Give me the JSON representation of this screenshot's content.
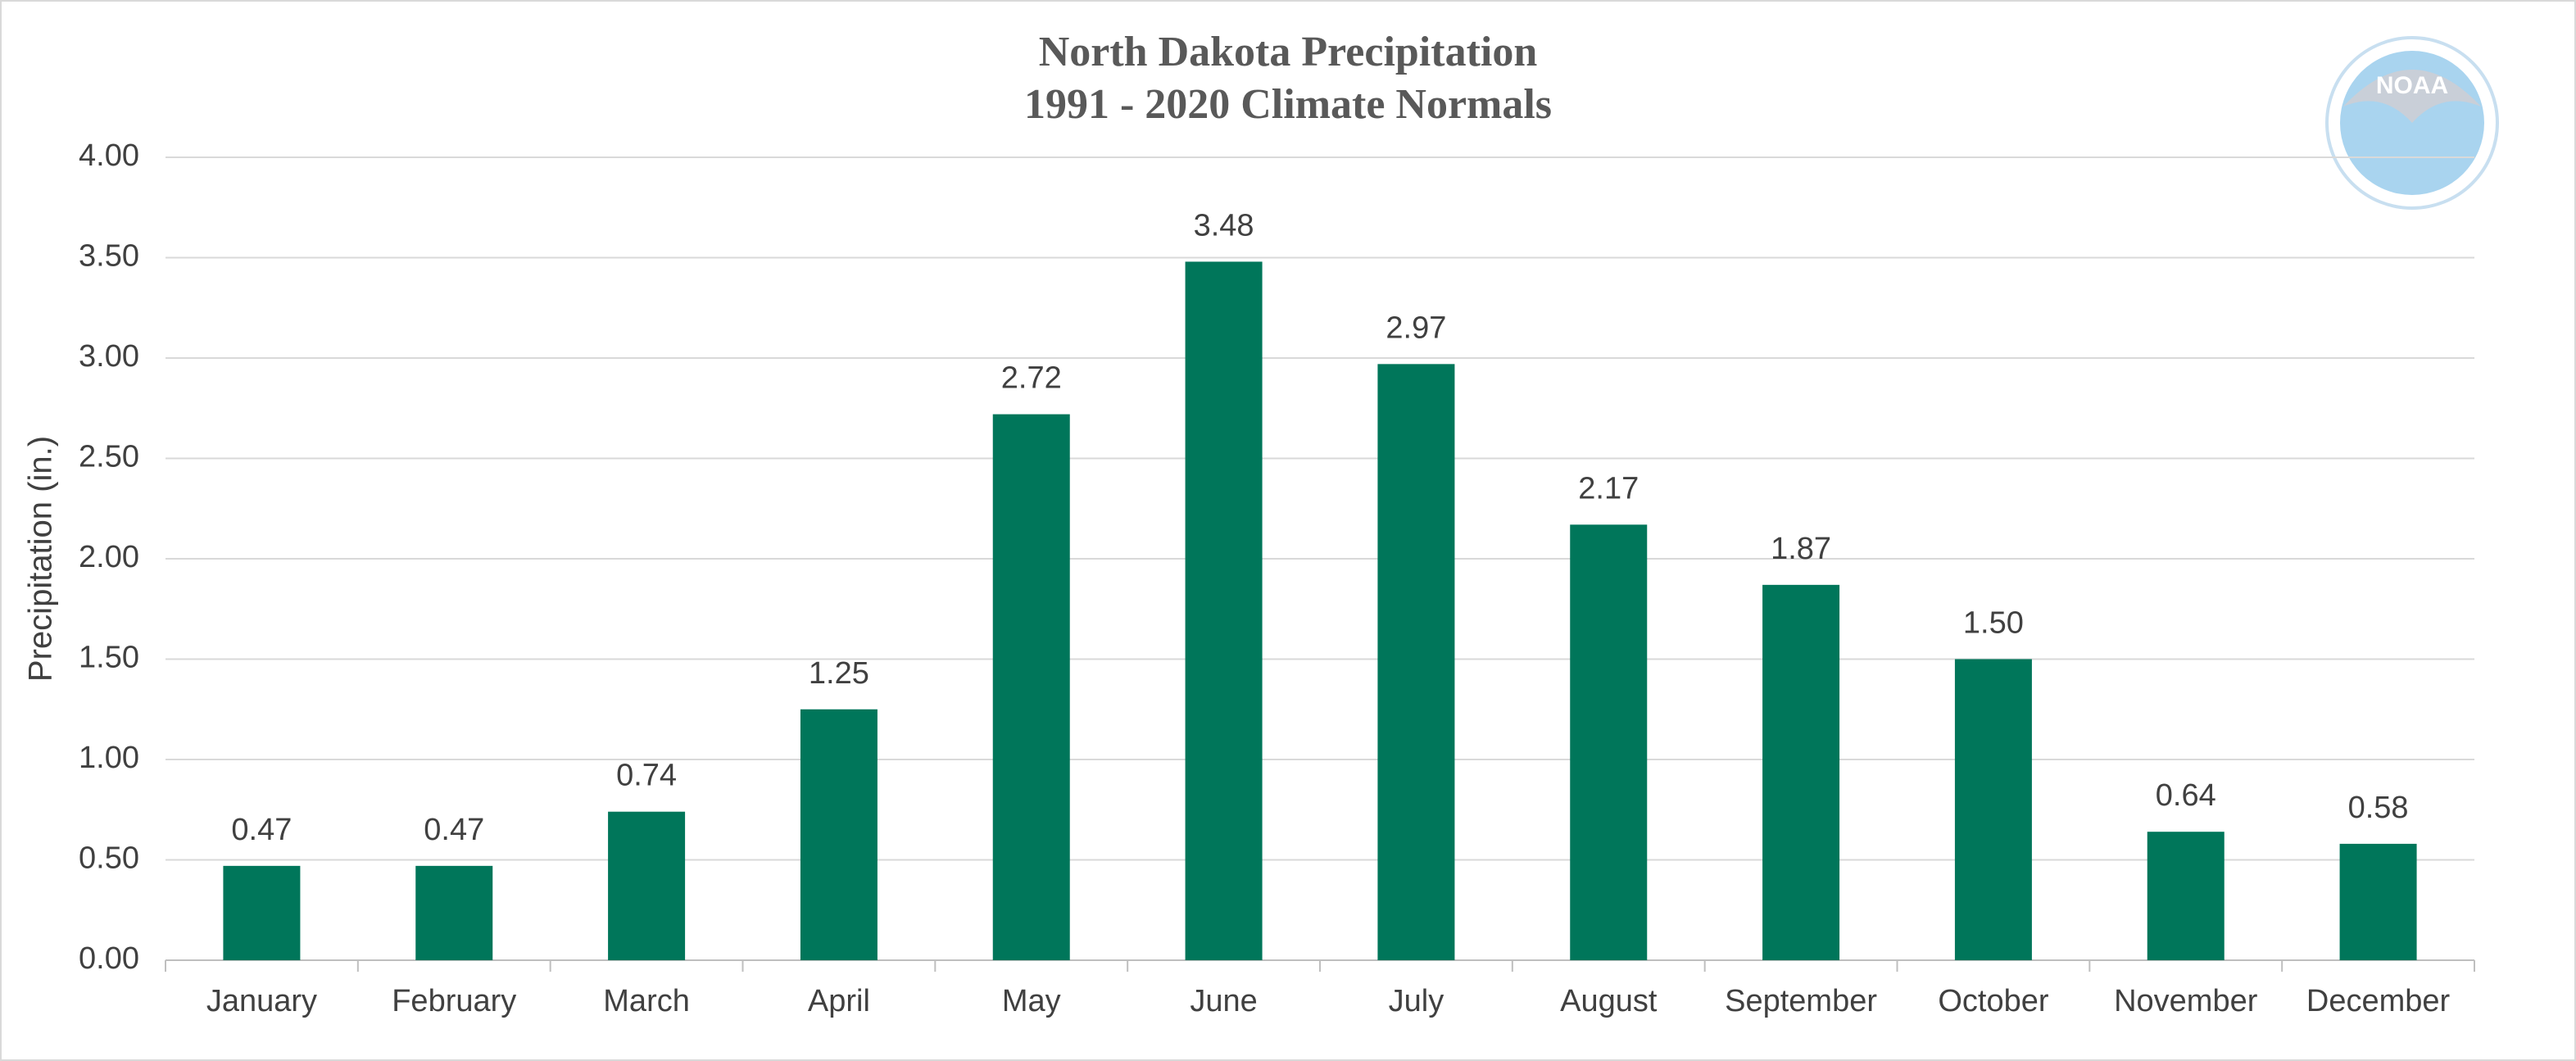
{
  "chart_data": {
    "type": "bar",
    "title": "North Dakota Precipitation",
    "subtitle": "1991 - 2020 Climate Normals",
    "logo": "NOAA",
    "y_label": "Precipitation (in.)",
    "categories": [
      "January",
      "February",
      "March",
      "April",
      "May",
      "June",
      "July",
      "August",
      "September",
      "October",
      "November",
      "December"
    ],
    "values": [
      0.47,
      0.47,
      0.74,
      1.25,
      2.72,
      3.48,
      2.97,
      2.17,
      1.87,
      1.5,
      0.64,
      0.58
    ],
    "value_labels": [
      "0.47",
      "0.47",
      "0.74",
      "1.25",
      "2.72",
      "3.48",
      "2.97",
      "2.17",
      "1.87",
      "1.50",
      "0.64",
      "0.58"
    ],
    "color": "#00765a",
    "ylim": [
      0,
      4
    ],
    "yticks": [
      {
        "value": 0,
        "label": "0.00"
      },
      {
        "value": 0.5,
        "label": "0.50"
      },
      {
        "value": 1,
        "label": "1.00"
      },
      {
        "value": 1.5,
        "label": "1.50"
      },
      {
        "value": 2,
        "label": "2.00"
      },
      {
        "value": 2.5,
        "label": "2.50"
      },
      {
        "value": 3,
        "label": "3.00"
      },
      {
        "value": 3.5,
        "label": "3.50"
      },
      {
        "value": 4,
        "label": "4.00"
      }
    ],
    "grid": true
  }
}
